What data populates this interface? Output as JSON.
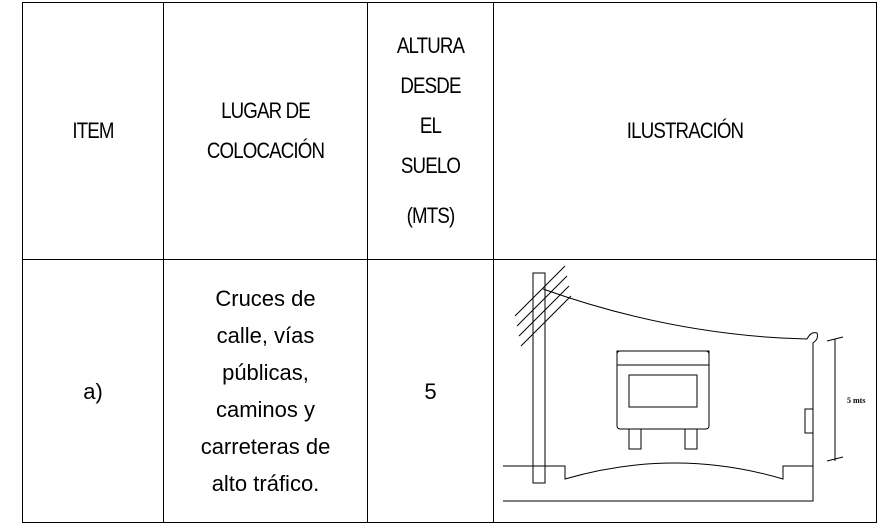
{
  "table": {
    "header": [
      [
        "ITEM"
      ],
      [
        "LUGAR DE",
        "COLOCACIÓN"
      ],
      [
        "ALTURA",
        "DESDE",
        "EL",
        "SUELO",
        "(MTS)"
      ],
      [
        "ILUSTRACIÓN"
      ]
    ],
    "rows": [
      [
        [
          "a)"
        ],
        [
          "Cruces de",
          "calle, vías",
          "públicas,",
          "caminos y",
          "carreteras de",
          "alto tráfico."
        ],
        [
          "5"
        ],
        {
          "dimension_label": "5 mts"
        }
      ]
    ]
  }
}
